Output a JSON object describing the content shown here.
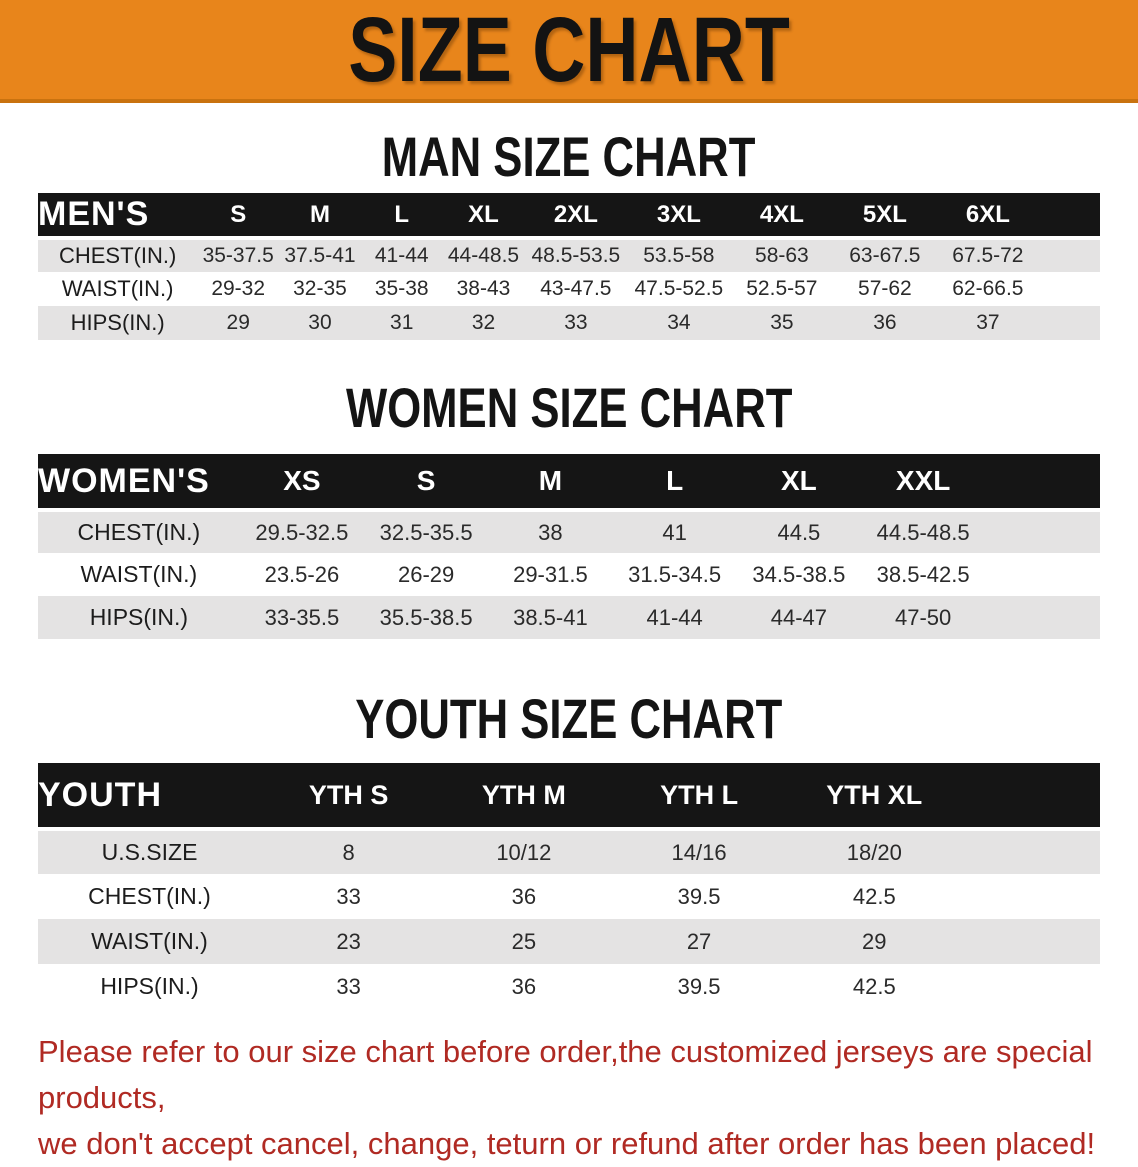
{
  "banner": {
    "title": "SIZE CHART",
    "bg_color": "#E8851B"
  },
  "sections": [
    {
      "title": "MAN SIZE CHART",
      "label": "MEN'S",
      "columns": [
        "S",
        "M",
        "L",
        "XL",
        "2XL",
        "3XL",
        "4XL",
        "5XL",
        "6XL"
      ],
      "rows": [
        {
          "label": "CHEST(IN.)",
          "values": [
            "35-37.5",
            "37.5-41",
            "41-44",
            "44-48.5",
            "48.5-53.5",
            "53.5-58",
            "58-63",
            "63-67.5",
            "67.5-72"
          ]
        },
        {
          "label": "WAIST(IN.)",
          "values": [
            "29-32",
            "32-35",
            "35-38",
            "38-43",
            "43-47.5",
            "47.5-52.5",
            "52.5-57",
            "57-62",
            "62-66.5"
          ]
        },
        {
          "label": "HIPS(IN.)",
          "values": [
            "29",
            "30",
            "31",
            "32",
            "33",
            "34",
            "35",
            "36",
            "37"
          ]
        }
      ]
    },
    {
      "title": "WOMEN SIZE CHART",
      "label": "WOMEN'S",
      "columns": [
        "XS",
        "S",
        "M",
        "L",
        "XL",
        "XXL"
      ],
      "rows": [
        {
          "label": "CHEST(IN.)",
          "values": [
            "29.5-32.5",
            "32.5-35.5",
            "38",
            "41",
            "44.5",
            "44.5-48.5"
          ]
        },
        {
          "label": "WAIST(IN.)",
          "values": [
            "23.5-26",
            "26-29",
            "29-31.5",
            "31.5-34.5",
            "34.5-38.5",
            "38.5-42.5"
          ]
        },
        {
          "label": "HIPS(IN.)",
          "values": [
            "33-35.5",
            "35.5-38.5",
            "38.5-41",
            "41-44",
            "44-47",
            "47-50"
          ]
        }
      ]
    },
    {
      "title": "YOUTH SIZE CHART",
      "label": "YOUTH",
      "columns": [
        "YTH S",
        "YTH M",
        "YTH L",
        "YTH XL"
      ],
      "rows": [
        {
          "label": "U.S.SIZE",
          "values": [
            "8",
            "10/12",
            "14/16",
            "18/20"
          ]
        },
        {
          "label": "CHEST(IN.)",
          "values": [
            "33",
            "36",
            "39.5",
            "42.5"
          ]
        },
        {
          "label": "WAIST(IN.)",
          "values": [
            "23",
            "25",
            "27",
            "29"
          ]
        },
        {
          "label": "HIPS(IN.)",
          "values": [
            "33",
            "36",
            "39.5",
            "42.5"
          ]
        }
      ]
    }
  ],
  "footer": {
    "line1": "Please refer to our size chart before order,the customized jerseys are special products,",
    "line2": "we don't accept cancel, change, teturn or refund after order has been placed!",
    "color": "#B02A23"
  }
}
